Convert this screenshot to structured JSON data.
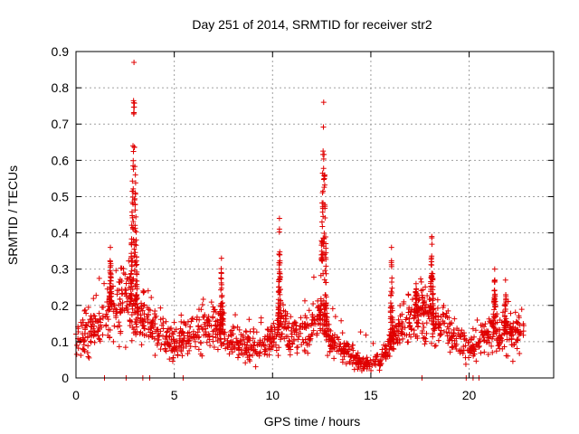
{
  "chart_data": {
    "type": "scatter",
    "title": "Day 251 of 2014, SRMTID for receiver str2",
    "xlabel": "GPS time / hours",
    "ylabel": "SRMTID / TECUs",
    "xlim": [
      0,
      24.3
    ],
    "ylim": [
      0,
      0.9
    ],
    "x_ticks": [
      0,
      5,
      10,
      15,
      20
    ],
    "y_ticks": [
      0,
      0.1,
      0.2,
      0.3,
      0.4,
      0.5,
      0.6,
      0.7,
      0.8,
      0.9
    ],
    "x_tick_labels": [
      "0",
      "5",
      "10",
      "15",
      "20"
    ],
    "y_tick_labels": [
      "0",
      "0.1",
      "0.2",
      "0.3",
      "0.4",
      "0.5",
      "0.6",
      "0.7",
      "0.8",
      "0.9"
    ],
    "grid": true,
    "marker": "+",
    "color": "#e00000",
    "series": [
      {
        "name": "SRMTID",
        "x_range": [
          0,
          22.8
        ],
        "baseline": [
          [
            0,
            0.11
          ],
          [
            0.5,
            0.12
          ],
          [
            1,
            0.14
          ],
          [
            1.5,
            0.17
          ],
          [
            2,
            0.2
          ],
          [
            2.5,
            0.24
          ],
          [
            3,
            0.18
          ],
          [
            3.5,
            0.16
          ],
          [
            4,
            0.14
          ],
          [
            4.5,
            0.11
          ],
          [
            5,
            0.09
          ],
          [
            5.5,
            0.1
          ],
          [
            6,
            0.12
          ],
          [
            6.5,
            0.13
          ],
          [
            7,
            0.14
          ],
          [
            7.5,
            0.12
          ],
          [
            8,
            0.1
          ],
          [
            8.5,
            0.09
          ],
          [
            9,
            0.08
          ],
          [
            9.5,
            0.09
          ],
          [
            10,
            0.11
          ],
          [
            10.5,
            0.15
          ],
          [
            11,
            0.11
          ],
          [
            11.5,
            0.12
          ],
          [
            12,
            0.15
          ],
          [
            12.5,
            0.16
          ],
          [
            13,
            0.1
          ],
          [
            13.5,
            0.07
          ],
          [
            14,
            0.06
          ],
          [
            14.5,
            0.04
          ],
          [
            15,
            0.04
          ],
          [
            15.5,
            0.05
          ],
          [
            16,
            0.09
          ],
          [
            16.5,
            0.14
          ],
          [
            17,
            0.16
          ],
          [
            17.5,
            0.17
          ],
          [
            18,
            0.18
          ],
          [
            18.5,
            0.15
          ],
          [
            19,
            0.13
          ],
          [
            19.5,
            0.1
          ],
          [
            20,
            0.09
          ],
          [
            20.5,
            0.1
          ],
          [
            21,
            0.13
          ],
          [
            21.5,
            0.12
          ],
          [
            22,
            0.12
          ],
          [
            22.8,
            0.12
          ]
        ],
        "spikes": [
          {
            "center": 2.95,
            "width": 0.35,
            "peak": 0.87
          },
          {
            "center": 1.75,
            "width": 0.15,
            "peak": 0.36
          },
          {
            "center": 7.4,
            "width": 0.2,
            "peak": 0.33
          },
          {
            "center": 10.35,
            "width": 0.15,
            "peak": 0.44
          },
          {
            "center": 12.6,
            "width": 0.35,
            "peak": 0.76
          },
          {
            "center": 16.05,
            "width": 0.15,
            "peak": 0.36
          },
          {
            "center": 17.3,
            "width": 0.2,
            "peak": 0.26
          },
          {
            "center": 18.1,
            "width": 0.2,
            "peak": 0.39
          },
          {
            "center": 21.3,
            "width": 0.15,
            "peak": 0.3
          },
          {
            "center": 21.85,
            "width": 0.15,
            "peak": 0.27
          }
        ],
        "zero_points": [
          1.45,
          2.55,
          3.4,
          3.75,
          5.45,
          17.6,
          19.85,
          20.2,
          20.5
        ]
      }
    ]
  }
}
